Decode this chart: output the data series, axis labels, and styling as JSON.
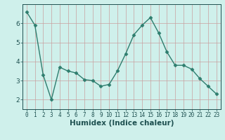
{
  "x": [
    0,
    1,
    2,
    3,
    4,
    5,
    6,
    7,
    8,
    9,
    10,
    11,
    12,
    13,
    14,
    15,
    16,
    17,
    18,
    19,
    20,
    21,
    22,
    23
  ],
  "y": [
    6.6,
    5.9,
    3.3,
    2.0,
    3.7,
    3.5,
    3.4,
    3.05,
    3.0,
    2.7,
    2.8,
    3.5,
    4.4,
    5.4,
    5.9,
    6.3,
    5.5,
    4.5,
    3.8,
    3.8,
    3.6,
    3.1,
    2.7,
    2.3
  ],
  "line_color": "#2e7d6e",
  "marker": "D",
  "markersize": 2.5,
  "linewidth": 1.0,
  "xlabel": "Humidex (Indice chaleur)",
  "xlim": [
    -0.5,
    23.5
  ],
  "ylim": [
    1.5,
    7.0
  ],
  "yticks": [
    2,
    3,
    4,
    5,
    6
  ],
  "xticks": [
    0,
    1,
    2,
    3,
    4,
    5,
    6,
    7,
    8,
    9,
    10,
    11,
    12,
    13,
    14,
    15,
    16,
    17,
    18,
    19,
    20,
    21,
    22,
    23
  ],
  "bg_color": "#cff0eb",
  "grid_color": "#c8a0a0",
  "tick_color": "#1e5050",
  "xlabel_fontsize": 7.5,
  "tick_fontsize_x": 5.5,
  "tick_fontsize_y": 6.5
}
